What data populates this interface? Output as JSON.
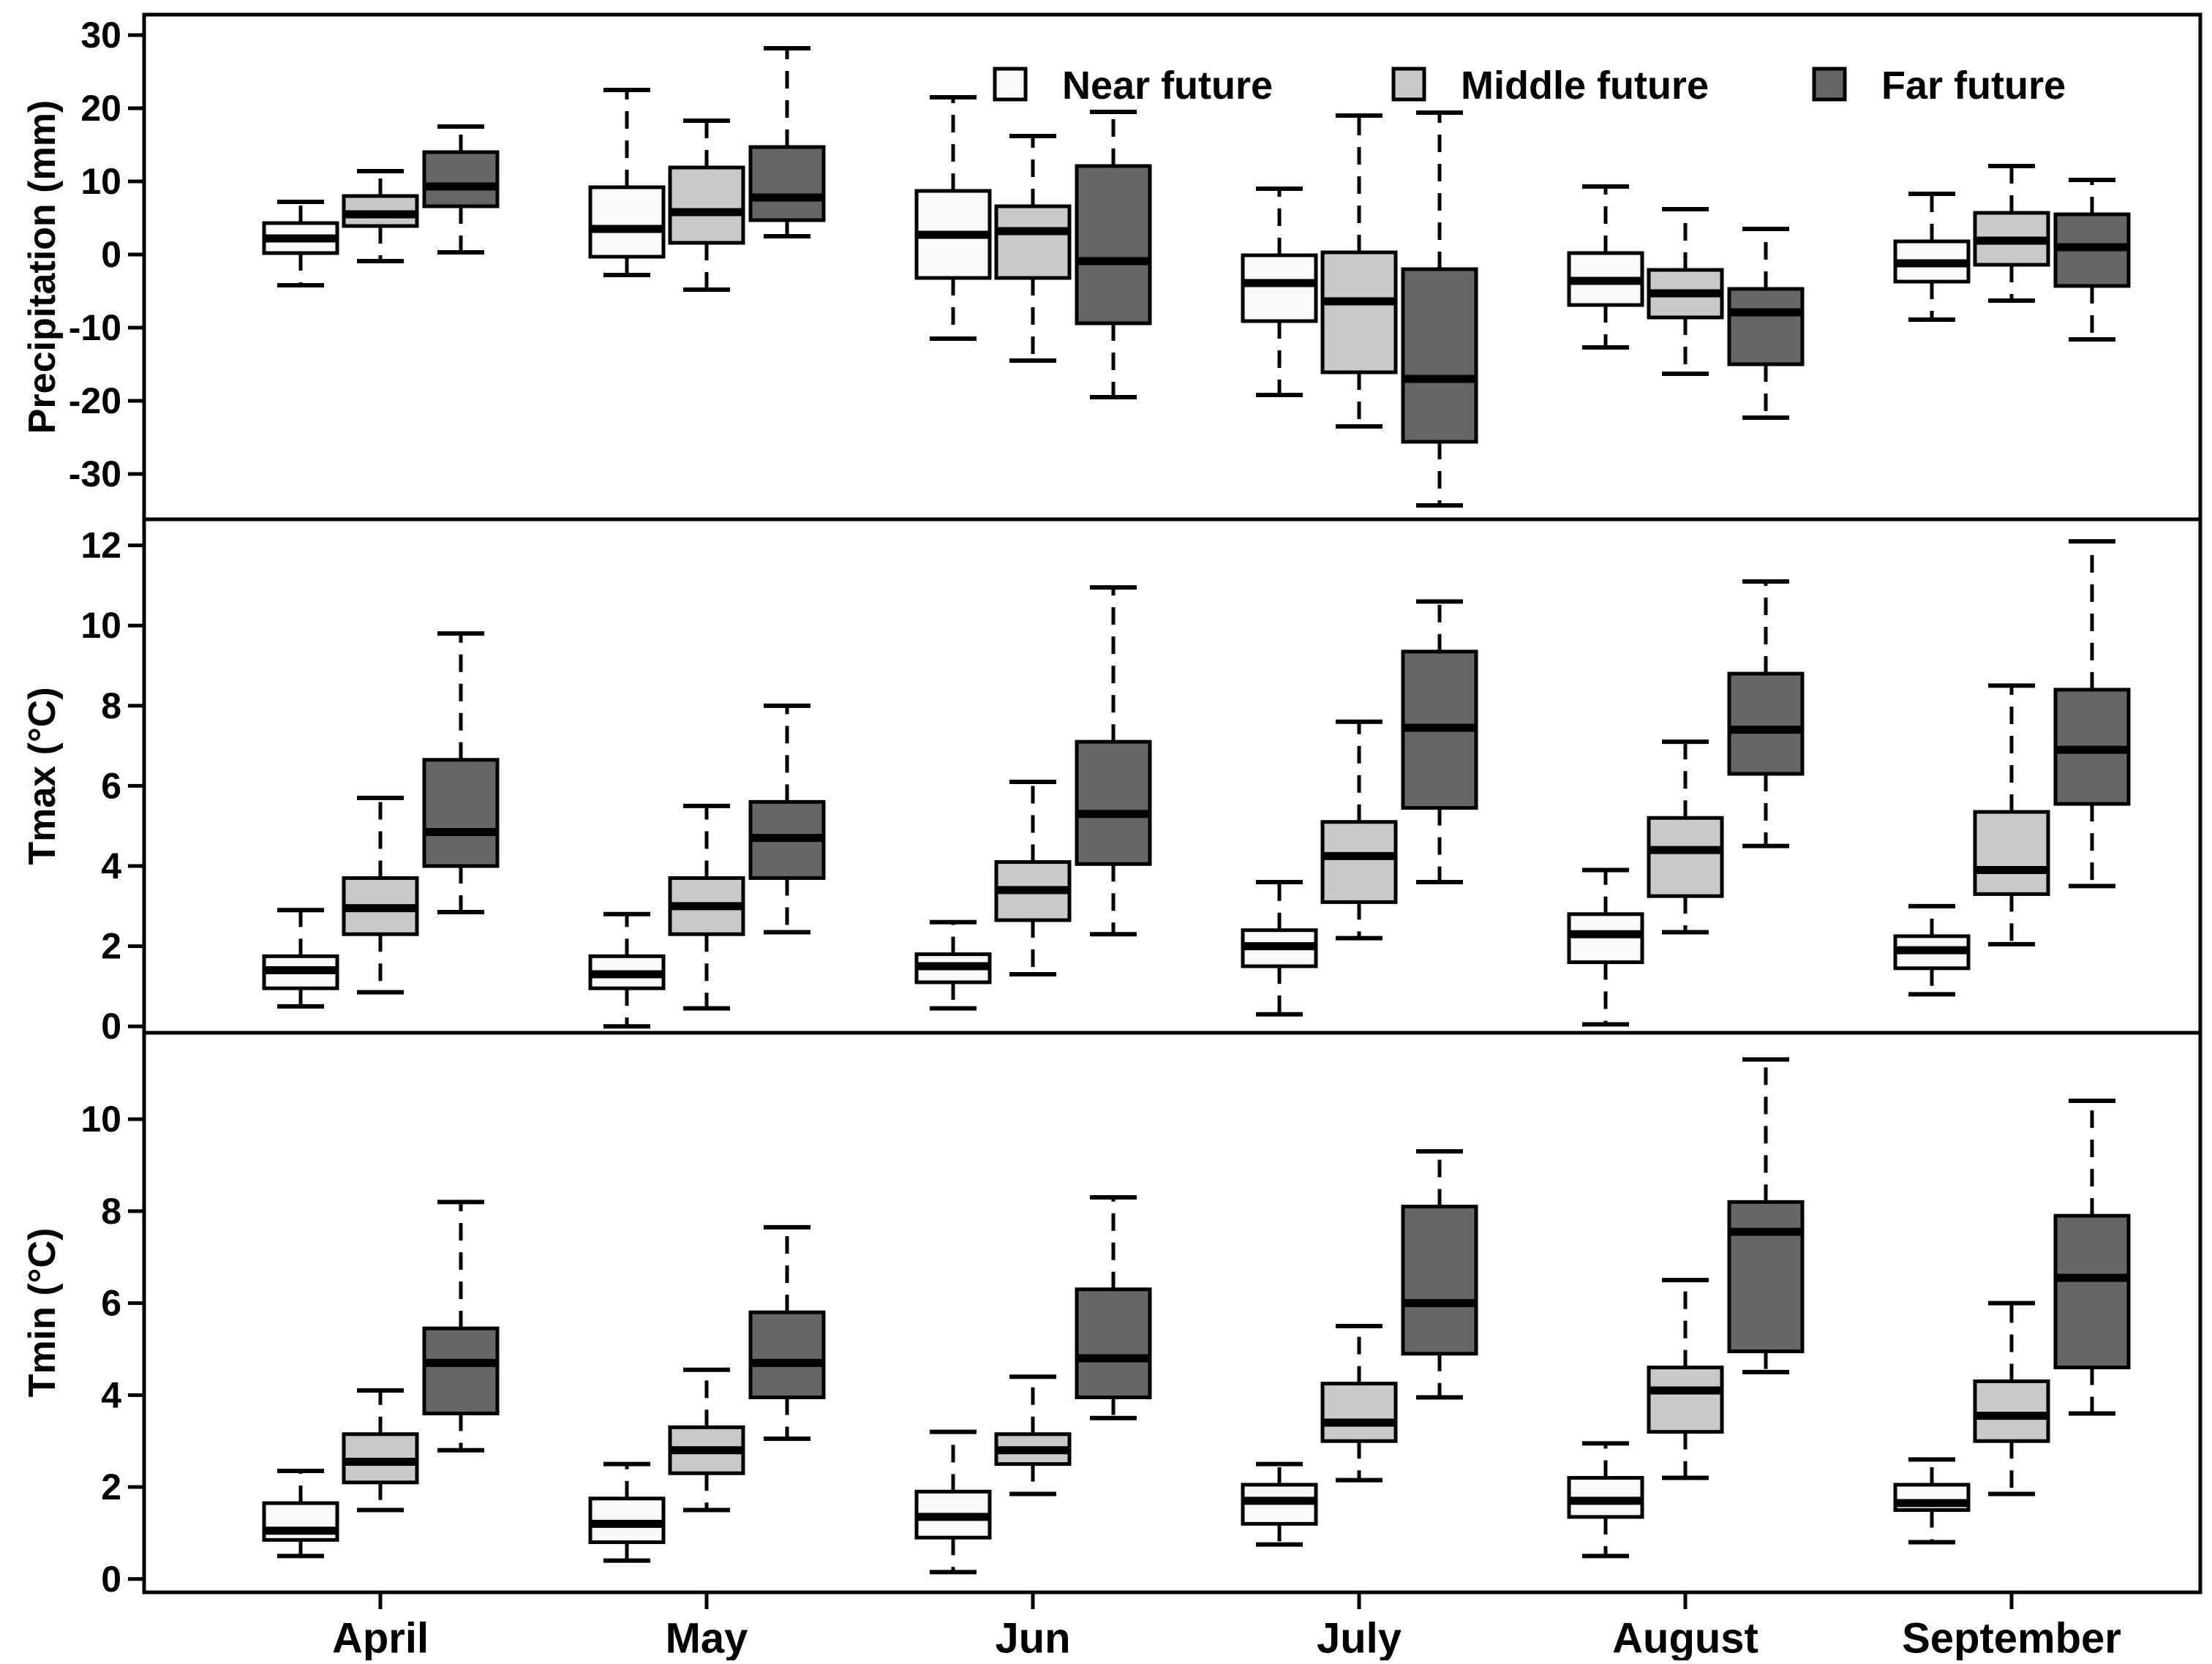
{
  "figure": {
    "background": "#ffffff",
    "axis_color": "#000000",
    "legend": {
      "position": "top-right-inside-first-panel",
      "items": [
        {
          "label": "Near future",
          "color": "#f8f8f8"
        },
        {
          "label": "Middle future",
          "color": "#c9c9c9"
        },
        {
          "label": "Far future",
          "color": "#666666"
        }
      ]
    },
    "x_axis": {
      "categories": [
        "April",
        "May",
        "Jun",
        "July",
        "August",
        "September"
      ]
    }
  },
  "chart_data": [
    {
      "type": "boxplot",
      "panel_id": "precipitation",
      "ylabel": "Precipitation (mm)",
      "ylim": [
        -36.2,
        32.8
      ],
      "yticks": [
        30,
        20,
        10,
        0,
        -10,
        -20,
        -30
      ],
      "grid": false,
      "categories": [
        "April",
        "May",
        "Jun",
        "July",
        "August",
        "September"
      ],
      "value_format": "[whisker_low, q1, median, q3, whisker_high]",
      "series": [
        {
          "name": "Near future",
          "values": [
            [
              -4.2,
              0.2,
              2.2,
              4.3,
              7.2
            ],
            [
              -2.8,
              -0.3,
              3.5,
              9.2,
              22.5
            ],
            [
              -11.5,
              -3.2,
              2.7,
              8.7,
              21.5
            ],
            [
              -19.2,
              -9.1,
              -3.9,
              -0.1,
              9.0
            ],
            [
              -12.7,
              -6.9,
              -3.6,
              0.2,
              9.3
            ],
            [
              -8.9,
              -3.7,
              -1.2,
              1.8,
              8.3
            ]
          ]
        },
        {
          "name": "Middle future",
          "values": [
            [
              -0.9,
              3.9,
              5.5,
              8.0,
              11.4
            ],
            [
              -4.8,
              1.6,
              5.8,
              11.9,
              18.3
            ],
            [
              -14.5,
              -3.2,
              3.2,
              6.6,
              16.2
            ],
            [
              -23.5,
              -16.1,
              -6.4,
              0.3,
              19.0
            ],
            [
              -16.3,
              -8.6,
              -5.3,
              -2.1,
              6.2
            ],
            [
              -6.3,
              -1.4,
              1.9,
              5.7,
              12.1
            ]
          ]
        },
        {
          "name": "Far future",
          "values": [
            [
              0.3,
              6.6,
              9.3,
              14.0,
              17.5
            ],
            [
              2.5,
              4.7,
              7.8,
              14.7,
              28.2
            ],
            [
              -19.5,
              -9.4,
              -0.9,
              12.1,
              19.5
            ],
            [
              -34.3,
              -25.6,
              -17.0,
              -2.0,
              19.4
            ],
            [
              -22.3,
              -15.0,
              -7.9,
              -4.7,
              3.5
            ],
            [
              -11.6,
              -4.3,
              1.0,
              5.5,
              10.2
            ]
          ]
        }
      ]
    },
    {
      "type": "boxplot",
      "panel_id": "tmax",
      "ylabel": "Tmax (°C)",
      "ylim": [
        -0.16,
        12.65
      ],
      "yticks": [
        12,
        10,
        8,
        6,
        4,
        2,
        0
      ],
      "grid": false,
      "categories": [
        "April",
        "May",
        "Jun",
        "July",
        "August",
        "September"
      ],
      "value_format": "[whisker_low, q1, median, q3, whisker_high]",
      "series": [
        {
          "name": "Near future",
          "values": [
            [
              0.5,
              0.95,
              1.4,
              1.75,
              2.9
            ],
            [
              0.0,
              0.95,
              1.3,
              1.75,
              2.8
            ],
            [
              0.45,
              1.1,
              1.5,
              1.8,
              2.6
            ],
            [
              0.3,
              1.5,
              2.0,
              2.4,
              3.6
            ],
            [
              0.05,
              1.6,
              2.3,
              2.8,
              3.9
            ],
            [
              0.8,
              1.45,
              1.9,
              2.25,
              3.0
            ]
          ]
        },
        {
          "name": "Middle future",
          "values": [
            [
              0.85,
              2.3,
              2.95,
              3.7,
              5.7
            ],
            [
              0.45,
              2.3,
              3.0,
              3.7,
              5.5
            ],
            [
              1.3,
              2.65,
              3.4,
              4.1,
              6.1
            ],
            [
              2.2,
              3.1,
              4.25,
              5.1,
              7.6
            ],
            [
              2.35,
              3.25,
              4.4,
              5.2,
              7.1
            ],
            [
              2.05,
              3.3,
              3.9,
              5.35,
              8.5
            ]
          ]
        },
        {
          "name": "Far future",
          "values": [
            [
              2.85,
              4.0,
              4.85,
              6.65,
              9.8
            ],
            [
              2.35,
              3.7,
              4.7,
              5.6,
              8.0
            ],
            [
              2.3,
              4.05,
              5.3,
              7.1,
              10.95
            ],
            [
              3.6,
              5.45,
              7.45,
              9.35,
              10.6
            ],
            [
              4.5,
              6.3,
              7.4,
              8.8,
              11.1
            ],
            [
              3.5,
              5.55,
              6.9,
              8.4,
              12.1
            ]
          ]
        }
      ]
    },
    {
      "type": "boxplot",
      "panel_id": "tmin",
      "ylabel": "Tmin (°C)",
      "ylim": [
        -0.29,
        11.88
      ],
      "yticks": [
        10,
        8,
        6,
        4,
        2,
        0
      ],
      "grid": false,
      "categories": [
        "April",
        "May",
        "Jun",
        "July",
        "August",
        "September"
      ],
      "value_format": "[whisker_low, q1, median, q3, whisker_high]",
      "series": [
        {
          "name": "Near future",
          "values": [
            [
              0.5,
              0.85,
              1.05,
              1.65,
              2.35
            ],
            [
              0.4,
              0.8,
              1.2,
              1.75,
              2.5
            ],
            [
              0.15,
              0.9,
              1.35,
              1.9,
              3.2
            ],
            [
              0.75,
              1.2,
              1.7,
              2.05,
              2.5
            ],
            [
              0.5,
              1.35,
              1.7,
              2.2,
              2.95
            ],
            [
              0.8,
              1.5,
              1.65,
              2.05,
              2.6
            ]
          ]
        },
        {
          "name": "Middle future",
          "values": [
            [
              1.5,
              2.1,
              2.55,
              3.15,
              4.1
            ],
            [
              1.5,
              2.3,
              2.8,
              3.3,
              4.55
            ],
            [
              1.85,
              2.5,
              2.8,
              3.15,
              4.4
            ],
            [
              2.15,
              3.0,
              3.4,
              4.25,
              5.5
            ],
            [
              2.2,
              3.2,
              4.1,
              4.6,
              6.5
            ],
            [
              1.85,
              3.0,
              3.55,
              4.3,
              6.0
            ]
          ]
        },
        {
          "name": "Far future",
          "values": [
            [
              2.8,
              3.6,
              4.7,
              5.45,
              8.2
            ],
            [
              3.05,
              3.95,
              4.7,
              5.8,
              7.65
            ],
            [
              3.5,
              3.95,
              4.8,
              6.3,
              8.3
            ],
            [
              3.95,
              4.9,
              6.0,
              8.1,
              9.3
            ],
            [
              4.5,
              4.95,
              7.55,
              8.2,
              11.3
            ],
            [
              3.6,
              4.6,
              6.55,
              7.9,
              10.4
            ]
          ]
        }
      ]
    }
  ]
}
